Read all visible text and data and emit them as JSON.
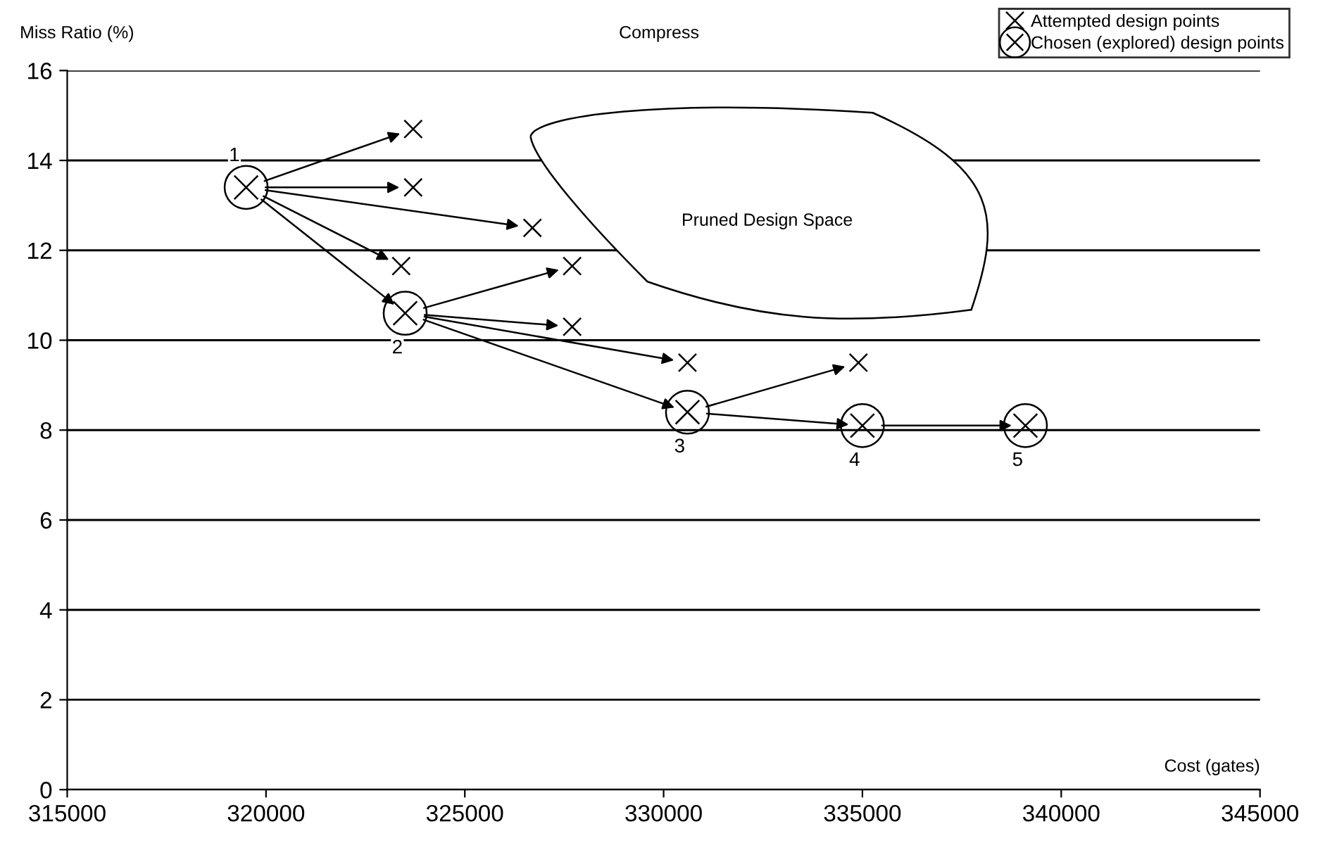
{
  "chart_data": {
    "type": "scatter",
    "title": "Compress",
    "xlabel": "Cost (gates)",
    "ylabel": "Miss Ratio (%)",
    "xlim": [
      315000,
      345000
    ],
    "xticks": [
      315000,
      320000,
      325000,
      330000,
      335000,
      340000,
      345000
    ],
    "ylim": [
      0,
      16
    ],
    "yticks": [
      0,
      2,
      4,
      6,
      8,
      10,
      12,
      14,
      16
    ],
    "grid": "y",
    "legend": "top right",
    "series": [
      {
        "name": "Attempted design points",
        "color": "#000000",
        "marker": "cross",
        "x": [
          323700,
          323700,
          326700,
          323400
        ],
        "values": [
          14.7,
          13.4,
          12.5,
          11.65
        ]
      },
      {
        "color": "#000000",
        "marker": "cross",
        "x": [
          327700,
          327700,
          330600
        ],
        "values": [
          11.65,
          10.3,
          9.5
        ]
      },
      {
        "color": "#000000",
        "marker": "cross",
        "x": [
          334900
        ],
        "values": [
          9.5
        ]
      },
      {
        "name": "Chosen (explored) design points",
        "color": "#000000",
        "marker": "circle",
        "x": [
          319500,
          323500,
          330600,
          335000,
          339100
        ],
        "values": [
          13.4,
          10.6,
          8.4,
          8.1,
          8.1
        ]
      }
    ],
    "annotations": [
      {
        "text": "1",
        "x": 319500,
        "y": 13.4
      },
      {
        "text": "2",
        "x": 323500,
        "y": 10.6
      },
      {
        "text": "3",
        "x": 330600,
        "y": 8.4
      },
      {
        "text": "4",
        "x": 335000,
        "y": 8.1
      },
      {
        "text": "5",
        "x": 339100,
        "y": 8.1
      },
      "Pruned Design Space"
    ]
  }
}
